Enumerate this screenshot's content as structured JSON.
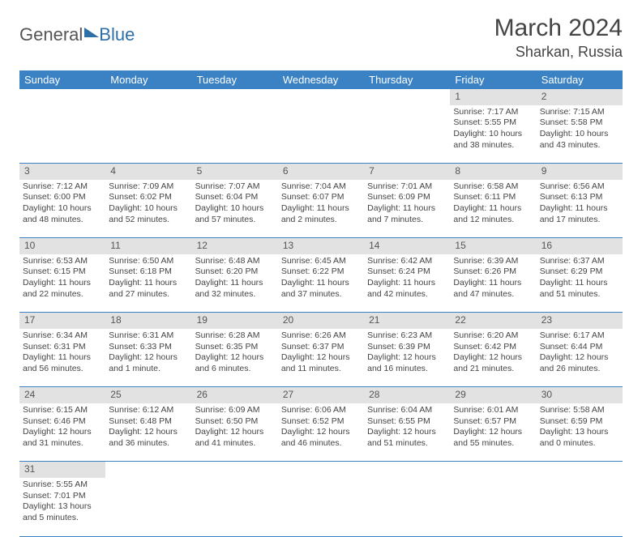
{
  "logo": {
    "part1": "General",
    "part2": "Blue"
  },
  "title": "March 2024",
  "location": "Sharkan, Russia",
  "colors": {
    "header_bg": "#3b82c4",
    "header_fg": "#ffffff",
    "daynum_bg": "#e2e2e2",
    "rule": "#3b82c4",
    "text": "#444444"
  },
  "weekdays": [
    "Sunday",
    "Monday",
    "Tuesday",
    "Wednesday",
    "Thursday",
    "Friday",
    "Saturday"
  ],
  "weeks": [
    [
      null,
      null,
      null,
      null,
      null,
      {
        "n": "1",
        "sr": "7:17 AM",
        "ss": "5:55 PM",
        "dl": "10 hours and 38 minutes."
      },
      {
        "n": "2",
        "sr": "7:15 AM",
        "ss": "5:58 PM",
        "dl": "10 hours and 43 minutes."
      }
    ],
    [
      {
        "n": "3",
        "sr": "7:12 AM",
        "ss": "6:00 PM",
        "dl": "10 hours and 48 minutes."
      },
      {
        "n": "4",
        "sr": "7:09 AM",
        "ss": "6:02 PM",
        "dl": "10 hours and 52 minutes."
      },
      {
        "n": "5",
        "sr": "7:07 AM",
        "ss": "6:04 PM",
        "dl": "10 hours and 57 minutes."
      },
      {
        "n": "6",
        "sr": "7:04 AM",
        "ss": "6:07 PM",
        "dl": "11 hours and 2 minutes."
      },
      {
        "n": "7",
        "sr": "7:01 AM",
        "ss": "6:09 PM",
        "dl": "11 hours and 7 minutes."
      },
      {
        "n": "8",
        "sr": "6:58 AM",
        "ss": "6:11 PM",
        "dl": "11 hours and 12 minutes."
      },
      {
        "n": "9",
        "sr": "6:56 AM",
        "ss": "6:13 PM",
        "dl": "11 hours and 17 minutes."
      }
    ],
    [
      {
        "n": "10",
        "sr": "6:53 AM",
        "ss": "6:15 PM",
        "dl": "11 hours and 22 minutes."
      },
      {
        "n": "11",
        "sr": "6:50 AM",
        "ss": "6:18 PM",
        "dl": "11 hours and 27 minutes."
      },
      {
        "n": "12",
        "sr": "6:48 AM",
        "ss": "6:20 PM",
        "dl": "11 hours and 32 minutes."
      },
      {
        "n": "13",
        "sr": "6:45 AM",
        "ss": "6:22 PM",
        "dl": "11 hours and 37 minutes."
      },
      {
        "n": "14",
        "sr": "6:42 AM",
        "ss": "6:24 PM",
        "dl": "11 hours and 42 minutes."
      },
      {
        "n": "15",
        "sr": "6:39 AM",
        "ss": "6:26 PM",
        "dl": "11 hours and 47 minutes."
      },
      {
        "n": "16",
        "sr": "6:37 AM",
        "ss": "6:29 PM",
        "dl": "11 hours and 51 minutes."
      }
    ],
    [
      {
        "n": "17",
        "sr": "6:34 AM",
        "ss": "6:31 PM",
        "dl": "11 hours and 56 minutes."
      },
      {
        "n": "18",
        "sr": "6:31 AM",
        "ss": "6:33 PM",
        "dl": "12 hours and 1 minute."
      },
      {
        "n": "19",
        "sr": "6:28 AM",
        "ss": "6:35 PM",
        "dl": "12 hours and 6 minutes."
      },
      {
        "n": "20",
        "sr": "6:26 AM",
        "ss": "6:37 PM",
        "dl": "12 hours and 11 minutes."
      },
      {
        "n": "21",
        "sr": "6:23 AM",
        "ss": "6:39 PM",
        "dl": "12 hours and 16 minutes."
      },
      {
        "n": "22",
        "sr": "6:20 AM",
        "ss": "6:42 PM",
        "dl": "12 hours and 21 minutes."
      },
      {
        "n": "23",
        "sr": "6:17 AM",
        "ss": "6:44 PM",
        "dl": "12 hours and 26 minutes."
      }
    ],
    [
      {
        "n": "24",
        "sr": "6:15 AM",
        "ss": "6:46 PM",
        "dl": "12 hours and 31 minutes."
      },
      {
        "n": "25",
        "sr": "6:12 AM",
        "ss": "6:48 PM",
        "dl": "12 hours and 36 minutes."
      },
      {
        "n": "26",
        "sr": "6:09 AM",
        "ss": "6:50 PM",
        "dl": "12 hours and 41 minutes."
      },
      {
        "n": "27",
        "sr": "6:06 AM",
        "ss": "6:52 PM",
        "dl": "12 hours and 46 minutes."
      },
      {
        "n": "28",
        "sr": "6:04 AM",
        "ss": "6:55 PM",
        "dl": "12 hours and 51 minutes."
      },
      {
        "n": "29",
        "sr": "6:01 AM",
        "ss": "6:57 PM",
        "dl": "12 hours and 55 minutes."
      },
      {
        "n": "30",
        "sr": "5:58 AM",
        "ss": "6:59 PM",
        "dl": "13 hours and 0 minutes."
      }
    ],
    [
      {
        "n": "31",
        "sr": "5:55 AM",
        "ss": "7:01 PM",
        "dl": "13 hours and 5 minutes."
      },
      null,
      null,
      null,
      null,
      null,
      null
    ]
  ]
}
